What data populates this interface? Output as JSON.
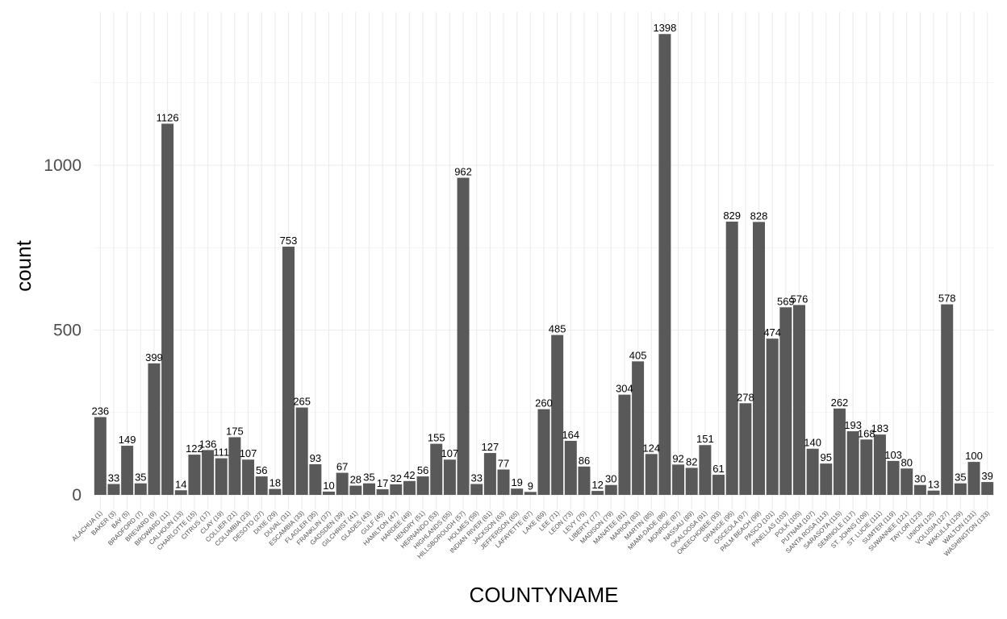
{
  "chart_data": {
    "type": "bar",
    "xlabel": "COUNTYNAME",
    "ylabel": "count",
    "ylim": [
      0,
      1400
    ],
    "y_ticks": [
      0,
      500,
      1000
    ],
    "grid": true,
    "bar_color": "#595959",
    "grid_color": "#ebebeb",
    "categories": [
      "ALACHUA (1)",
      "BAKER (3)",
      "BAY (5)",
      "BRADFORD (7)",
      "BREVARD (9)",
      "BROWARD (11)",
      "CALHOUN (13)",
      "CHARLOTTE (15)",
      "CITRUS (17)",
      "CLAY (19)",
      "COLLIER (21)",
      "COLUMBIA (23)",
      "DESOTO (27)",
      "DIXIE (29)",
      "DUVAL (31)",
      "ESCAMBIA (33)",
      "FLAGLER (35)",
      "FRANKLIN (37)",
      "GADSDEN (39)",
      "GILCHRIST (41)",
      "GLADES (43)",
      "GULF (45)",
      "HAMILTON (47)",
      "HARDEE (49)",
      "HENDRY (51)",
      "HERNANDO (53)",
      "HIGHLANDS (55)",
      "HILLSBOROUGH (57)",
      "HOLMES (59)",
      "INDIAN RIVER (61)",
      "JACKSON (63)",
      "JEFFERSON (65)",
      "LAFAYETTE (67)",
      "LAKE (69)",
      "LEE (71)",
      "LEON (73)",
      "LEVY (75)",
      "LIBERTY (77)",
      "MADISON (79)",
      "MANATEE (81)",
      "MARION (83)",
      "MARTIN (85)",
      "MIAMI-DADE (86)",
      "MONROE (87)",
      "NASSAU (89)",
      "OKALOOSA (91)",
      "OKEECHOBEE (93)",
      "ORANGE (95)",
      "OSCEOLA (97)",
      "PALM BEACH (99)",
      "PASCO (101)",
      "PINELLAS (103)",
      "POLK (105)",
      "PUTNAM (107)",
      "SANTA ROSA (113)",
      "SARASOTA (115)",
      "SEMINOLE (117)",
      "ST. JOHNS (109)",
      "ST. LUCIE (111)",
      "SUMTER (119)",
      "SUWANNEE (121)",
      "TAYLOR (123)",
      "UNION (125)",
      "VOLUSIA (127)",
      "WAKULLA (129)",
      "WALTON (131)",
      "WASHINGTON (133)"
    ],
    "values": [
      236,
      33,
      149,
      35,
      399,
      1126,
      14,
      122,
      136,
      111,
      175,
      107,
      56,
      18,
      753,
      265,
      93,
      10,
      67,
      28,
      35,
      17,
      32,
      42,
      56,
      155,
      107,
      962,
      33,
      127,
      77,
      19,
      9,
      260,
      485,
      164,
      86,
      12,
      30,
      304,
      405,
      124,
      1398,
      92,
      82,
      151,
      61,
      829,
      278,
      828,
      474,
      569,
      576,
      140,
      95,
      262,
      193,
      168,
      183,
      103,
      80,
      30,
      13,
      578,
      35,
      100,
      39
    ]
  }
}
